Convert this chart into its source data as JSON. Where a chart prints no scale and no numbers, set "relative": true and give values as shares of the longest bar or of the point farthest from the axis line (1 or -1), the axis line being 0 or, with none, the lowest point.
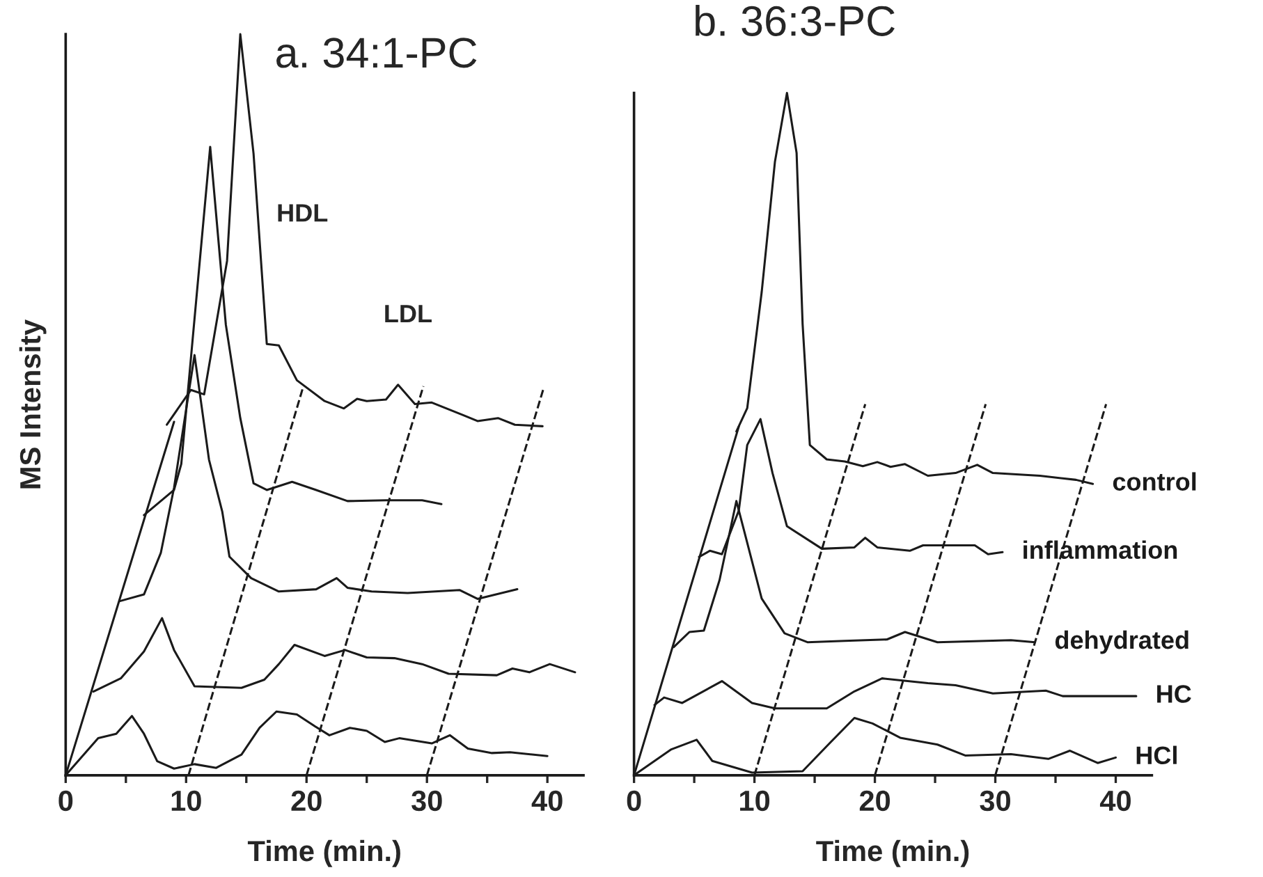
{
  "chart_data": [
    {
      "type": "line",
      "title": "a. 34:1-PC",
      "xlabel": "Time (min.)",
      "ylabel": "MS Intensity",
      "relative": true,
      "grid": false,
      "legend": false,
      "xlim": [
        0,
        43
      ],
      "xticks": [
        0,
        {
          "value": 5,
          "label": null
        },
        10,
        {
          "value": 15,
          "label": null
        },
        20,
        {
          "value": 25,
          "label": null
        },
        30,
        {
          "value": 35,
          "label": null
        },
        40
      ],
      "annotations": [
        "HDL",
        "LDL"
      ],
      "series": [
        {
          "color": "#1a1a1a",
          "x": [
            0,
            2.7,
            4.2,
            5.5,
            6.5,
            7.6,
            9,
            10.7,
            12.5,
            14.6,
            16.1,
            17.5,
            19.2,
            20.7,
            21.9,
            23.6,
            25,
            26.5,
            27.7,
            30.4,
            31.9,
            33.4,
            35.4,
            36.9,
            40
          ],
          "values": [
            0,
            0.05,
            0.056,
            0.08,
            0.056,
            0.019,
            0.009,
            0.015,
            0.01,
            0.028,
            0.064,
            0.086,
            0.082,
            0.066,
            0.054,
            0.064,
            0.06,
            0.045,
            0.05,
            0.043,
            0.054,
            0.036,
            0.03,
            0.031,
            0.026
          ]
        },
        {
          "color": "#1a1a1a",
          "x": [
            2.3,
            4.6,
            6.5,
            8,
            9,
            10.7,
            14.6,
            16.5,
            17.7,
            19,
            21.5,
            23.2,
            25,
            27.3,
            29.6,
            31.8,
            35.8,
            37.1,
            38.5,
            40.2,
            42.3
          ],
          "values": [
            0.113,
            0.131,
            0.167,
            0.212,
            0.169,
            0.12,
            0.118,
            0.129,
            0.15,
            0.176,
            0.161,
            0.169,
            0.159,
            0.158,
            0.15,
            0.137,
            0.135,
            0.144,
            0.139,
            0.15,
            0.139
          ]
        },
        {
          "color": "#1a1a1a",
          "x": [
            4.5,
            6.5,
            7.9,
            9,
            10.7,
            11.9,
            13,
            13.6,
            15.4,
            17.7,
            20.8,
            22.5,
            23.4,
            25.4,
            28.4,
            32.7,
            34.2,
            37.5
          ],
          "values": [
            0.235,
            0.244,
            0.3,
            0.388,
            0.567,
            0.426,
            0.356,
            0.295,
            0.266,
            0.248,
            0.251,
            0.266,
            0.253,
            0.248,
            0.246,
            0.25,
            0.238,
            0.251
          ]
        },
        {
          "color": "#1a1a1a",
          "x": [
            6.5,
            9,
            9.6,
            12,
            13.3,
            14.5,
            15.6,
            16.7,
            18.8,
            20.8,
            23.4,
            26.6,
            29.6,
            31.2
          ],
          "values": [
            0.351,
            0.385,
            0.42,
            0.848,
            0.608,
            0.482,
            0.394,
            0.385,
            0.396,
            0.385,
            0.37,
            0.371,
            0.371,
            0.366
          ]
        },
        {
          "color": "#1a1a1a",
          "x": [
            8.4,
            10.4,
            11.5,
            13.4,
            14.5,
            15.6,
            16.7,
            17.7,
            19.2,
            21.5,
            23.1,
            24.2,
            25,
            26.6,
            27.6,
            29,
            30.4,
            33,
            34.2,
            35.9,
            37.3,
            39.6
          ],
          "values": [
            0.473,
            0.52,
            0.514,
            0.694,
            1,
            0.839,
            0.582,
            0.58,
            0.533,
            0.505,
            0.495,
            0.508,
            0.505,
            0.507,
            0.527,
            0.501,
            0.503,
            0.486,
            0.478,
            0.482,
            0.473,
            0.471
          ]
        },
        {
          "color": "#1a1a1a",
          "line_style": "solid",
          "x": [
            0,
            9
          ],
          "values": [
            0,
            0.477
          ]
        },
        {
          "color": "#1a1a1a",
          "line_style": "dashed",
          "x": [
            10.2,
            19.7
          ],
          "values": [
            0,
            0.523
          ]
        },
        {
          "color": "#1a1a1a",
          "line_style": "dashed",
          "x": [
            20,
            29.7
          ],
          "values": [
            0,
            0.525
          ]
        },
        {
          "color": "#1a1a1a",
          "line_style": "dashed",
          "x": [
            30,
            39.7
          ],
          "values": [
            0,
            0.523
          ]
        }
      ]
    },
    {
      "type": "line",
      "title": "b. 36:3-PC",
      "xlabel": "Time (min.)",
      "relative": true,
      "grid": false,
      "legend": false,
      "xlim": [
        0,
        43
      ],
      "xticks": [
        0,
        {
          "value": 5,
          "label": null
        },
        10,
        {
          "value": 15,
          "label": null
        },
        20,
        {
          "value": 25,
          "label": null
        },
        30,
        {
          "value": 35,
          "label": null
        },
        40
      ],
      "series": [
        {
          "name": "HCl",
          "color": "#1a1a1a",
          "x": [
            0,
            3.1,
            5.2,
            6.5,
            9.8,
            14,
            16.3,
            18.3,
            19.8,
            22.1,
            25.2,
            27.5,
            31.3,
            34.4,
            36.2,
            38.5,
            40
          ],
          "values": [
            0,
            0.038,
            0.052,
            0.021,
            0.004,
            0.006,
            0.048,
            0.084,
            0.076,
            0.055,
            0.045,
            0.029,
            0.031,
            0.024,
            0.036,
            0.018,
            0.026
          ]
        },
        {
          "name": "HC",
          "color": "#1a1a1a",
          "x": [
            1.7,
            2.5,
            4,
            7.3,
            9.8,
            11.7,
            16,
            18.3,
            20.6,
            24.4,
            26.7,
            29.8,
            34.2,
            35.6,
            41.7
          ],
          "values": [
            0.103,
            0.114,
            0.106,
            0.138,
            0.106,
            0.098,
            0.098,
            0.123,
            0.142,
            0.135,
            0.132,
            0.12,
            0.124,
            0.116,
            0.116
          ]
        },
        {
          "name": "dehydrated",
          "color": "#1a1a1a",
          "x": [
            3.3,
            4.6,
            5.8,
            7.1,
            8.5,
            9,
            10.6,
            12.5,
            14.4,
            17.5,
            21,
            22.5,
            25.2,
            31.3,
            33.3
          ],
          "values": [
            0.188,
            0.21,
            0.212,
            0.286,
            0.402,
            0.368,
            0.259,
            0.208,
            0.195,
            0.197,
            0.199,
            0.21,
            0.195,
            0.198,
            0.195
          ]
        },
        {
          "name": "inflammation",
          "color": "#1a1a1a",
          "x": [
            5.4,
            6.3,
            7.3,
            8.7,
            9.4,
            10.5,
            11.5,
            12.7,
            15.6,
            18.3,
            19.2,
            20.2,
            22.9,
            24,
            28.3,
            29.4,
            30.6
          ],
          "values": [
            0.32,
            0.329,
            0.324,
            0.388,
            0.484,
            0.522,
            0.443,
            0.365,
            0.332,
            0.334,
            0.348,
            0.334,
            0.329,
            0.337,
            0.337,
            0.324,
            0.327
          ]
        },
        {
          "name": "control",
          "color": "#1a1a1a",
          "x": [
            8.5,
            9.4,
            10.6,
            11.7,
            12.7,
            13.5,
            14,
            14.6,
            16,
            17.5,
            19,
            20.2,
            21.3,
            22.5,
            24.4,
            26.7,
            28.5,
            29.8,
            33.7,
            36.7,
            38.1
          ],
          "values": [
            0.504,
            0.538,
            0.708,
            0.899,
            1,
            0.912,
            0.661,
            0.484,
            0.463,
            0.46,
            0.453,
            0.459,
            0.452,
            0.456,
            0.439,
            0.443,
            0.455,
            0.443,
            0.439,
            0.433,
            0.427
          ]
        },
        {
          "color": "#1a1a1a",
          "line_style": "solid",
          "x": [
            0,
            8.7
          ],
          "values": [
            0,
            0.511
          ]
        },
        {
          "color": "#1a1a1a",
          "line_style": "dashed",
          "x": [
            10,
            19.2
          ],
          "values": [
            0,
            0.544
          ]
        },
        {
          "color": "#1a1a1a",
          "line_style": "dashed",
          "x": [
            20,
            29.2
          ],
          "values": [
            0,
            0.544
          ]
        },
        {
          "color": "#1a1a1a",
          "line_style": "dashed",
          "x": [
            30,
            39.2
          ],
          "values": [
            0,
            0.544
          ]
        }
      ]
    }
  ]
}
